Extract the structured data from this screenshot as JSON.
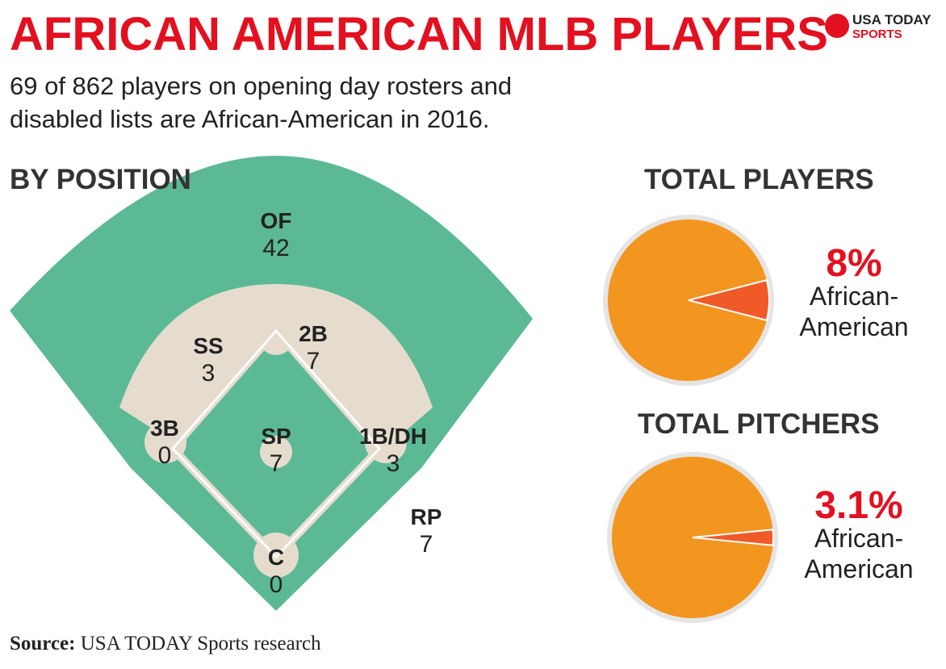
{
  "header": {
    "title": "AFRICAN AMERICAN MLB PLAYERS",
    "subtitle_line1": "69 of 862 players on opening day rosters and",
    "subtitle_line2": "disabled lists are African-American in 2016."
  },
  "logo": {
    "line1": "USA TODAY",
    "line2": "SPORTS"
  },
  "colors": {
    "title": "#e3101f",
    "field": "#5cb995",
    "infield_dirt": "#e6dccd",
    "pie_main": "#f3961f",
    "pie_slice": "#f05a28",
    "pie_ring": "#e5e5e5"
  },
  "sections": {
    "by_position": "BY POSITION",
    "total_players": "TOTAL PLAYERS",
    "total_pitchers": "TOTAL PITCHERS"
  },
  "chart_data": [
    {
      "type": "table",
      "title": "BY POSITION",
      "categories": [
        "OF",
        "SS",
        "2B",
        "3B",
        "SP",
        "1B/DH",
        "RP",
        "C"
      ],
      "values": [
        42,
        3,
        7,
        0,
        7,
        3,
        7,
        0
      ]
    },
    {
      "type": "pie",
      "title": "TOTAL PLAYERS",
      "percent_label": "8%",
      "slice_label_line1": "African-",
      "slice_label_line2": "American",
      "values": [
        8,
        92
      ]
    },
    {
      "type": "pie",
      "title": "TOTAL PITCHERS",
      "percent_label": "3.1%",
      "slice_label_line1": "African-",
      "slice_label_line2": "American",
      "values": [
        3.1,
        96.9
      ]
    }
  ],
  "source": {
    "label": "Source:",
    "text": " USA TODAY Sports research"
  }
}
